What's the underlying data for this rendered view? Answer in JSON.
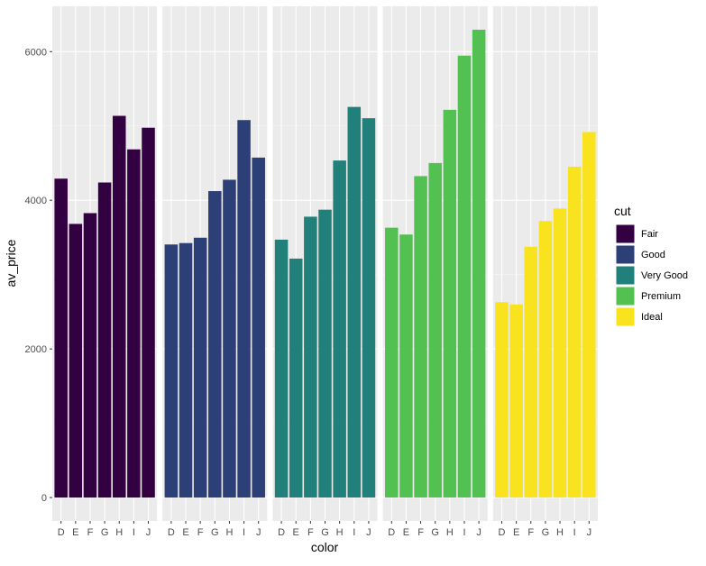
{
  "chart_data": {
    "type": "bar",
    "title": "",
    "xlabel": "color",
    "ylabel": "av_price",
    "ylim": [
      0,
      6295
    ],
    "yticks": [
      0,
      2000,
      4000,
      6000
    ],
    "yticklabels": [
      "0",
      "2000",
      "4000",
      "6000"
    ],
    "categories": [
      "D",
      "E",
      "F",
      "G",
      "H",
      "I",
      "J"
    ],
    "facet_by": "cut",
    "grid": true,
    "legend": {
      "title": "cut",
      "placement": "right"
    },
    "series": [
      {
        "name": "Fair",
        "color": "#330042",
        "values": [
          4291,
          3682,
          3827,
          4239,
          5136,
          4685,
          4976
        ]
      },
      {
        "name": "Good",
        "color": "#2D3F77",
        "values": [
          3405,
          3424,
          3496,
          4123,
          4276,
          5079,
          4574
        ]
      },
      {
        "name": "Very Good",
        "color": "#21807A",
        "values": [
          3470,
          3215,
          3779,
          3873,
          4535,
          5256,
          5104
        ]
      },
      {
        "name": "Premium",
        "color": "#52C152",
        "values": [
          3631,
          3539,
          4325,
          4501,
          5217,
          5946,
          6295
        ]
      },
      {
        "name": "Ideal",
        "color": "#F9E21E",
        "values": [
          2629,
          2598,
          3375,
          3721,
          3889,
          4452,
          4918
        ]
      }
    ]
  }
}
